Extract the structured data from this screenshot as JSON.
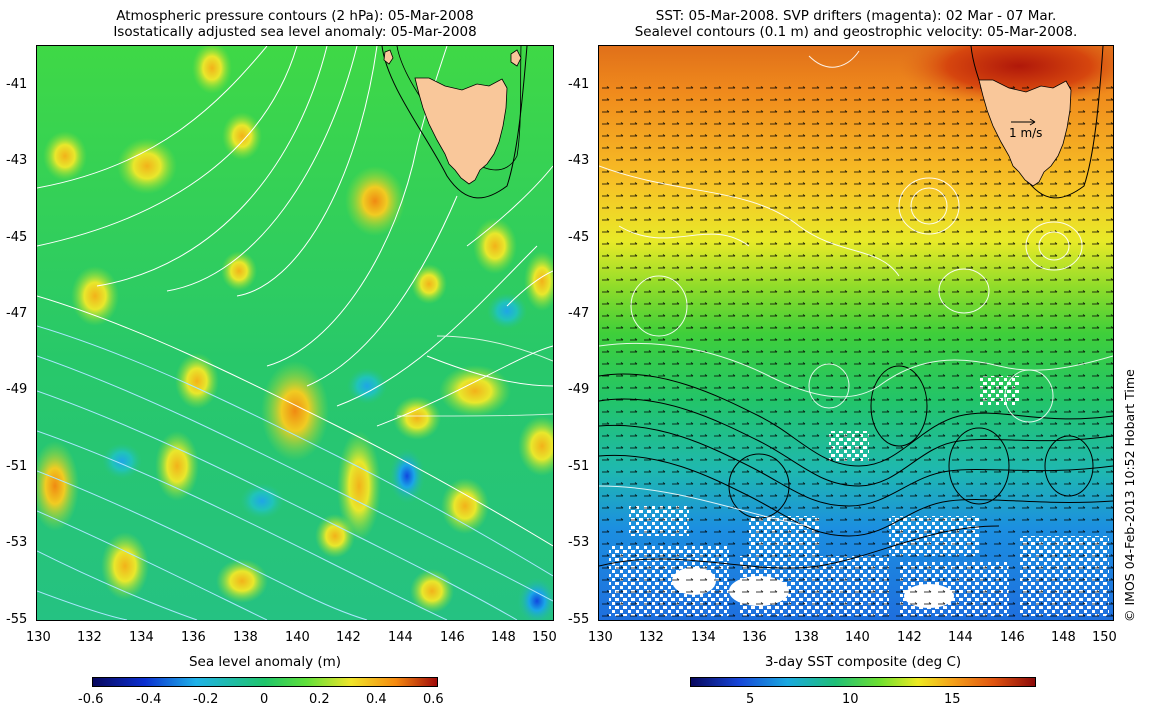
{
  "left_panel": {
    "title_line1": "Atmospheric pressure contours (2 hPa): 05-Mar-2008",
    "title_line2": "Isostatically adjusted sea level anomaly: 05-Mar-2008",
    "colorbar_label": "Sea level anomaly (m)",
    "colorbar_ticks": [
      "-0.6",
      "-0.4",
      "-0.2",
      "0",
      "0.2",
      "0.4",
      "0.6"
    ]
  },
  "right_panel": {
    "title_line1": "SST: 05-Mar-2008. SVP drifters (magenta): 02 Mar - 07 Mar.",
    "title_line2": "Sealevel contours (0.1 m) and geostrophic velocity: 05-Mar-2008.",
    "colorbar_label": "3-day SST composite (deg C)",
    "colorbar_ticks": [
      "5",
      "10",
      "15"
    ],
    "velocity_scale_label": "1 m/s"
  },
  "credit": "© IMOS 04-Feb-2013 10:52 Hobart Time",
  "axes": {
    "lat_ticks": [
      "-41",
      "-43",
      "-45",
      "-47",
      "-49",
      "-51",
      "-53",
      "-55"
    ],
    "lon_ticks": [
      "130",
      "132",
      "134",
      "136",
      "138",
      "140",
      "142",
      "144",
      "146",
      "148",
      "150"
    ],
    "lon_range": [
      130,
      150
    ],
    "lat_range": [
      -55,
      -40
    ]
  },
  "colors": {
    "land": "#f9c79a",
    "sla_scale": [
      "#08085e",
      "#0b2fd0",
      "#1fb2e8",
      "#1fc56a",
      "#5fe03a",
      "#f0e52a",
      "#f58a10",
      "#a10a0a"
    ],
    "sst_scale": [
      "#08085e",
      "#1746d8",
      "#1aa9e0",
      "#1fbf77",
      "#6fe030",
      "#eeea22",
      "#f5a21a",
      "#e05410",
      "#8c0a0a"
    ]
  }
}
